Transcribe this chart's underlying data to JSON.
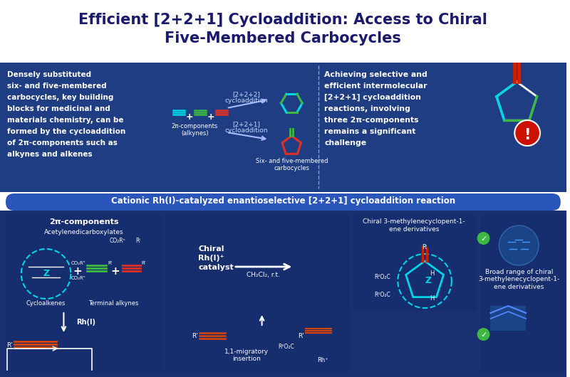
{
  "title_line1": "Efficient [2+2+1] Cycloaddition: Access to Chiral",
  "title_line2": "Five-Membered Carbocycles",
  "title_color": "#1a1a6e",
  "bg_top": "#ffffff",
  "bg_blue": "#1e3d82",
  "bg_dark_blue": "#162d6e",
  "bg_bottom": "#1a3070",
  "section2_title": "Cationic Rh(I)-catalyzed enantioselective [2+2+1] cycloaddition reaction",
  "left_text": [
    "Densely substituted",
    "six- and five-membered",
    "carbocycles, key building",
    "blocks for medicinal and",
    "materials chemistry, can be",
    "formed by the cycloaddition",
    "of 2π-components such as",
    "alkynes and alkenes"
  ],
  "right_text": [
    "Achieving selective and",
    "efficient intermolecular",
    "[2+2+1] cycloaddition",
    "reactions, involving",
    "three 2π-components",
    "remains a significant",
    "challenge"
  ],
  "label_alkynes": "2π-components\n(alkynes)",
  "label_products": "Six- and five-membered\ncarbocycles",
  "bottom_left_title": "2π-components",
  "bottom_left_sub1": "Acetylenedicarboxylates",
  "bottom_left_sub2": "Cycloalkenes",
  "bottom_left_sub3": "Terminal alkynes",
  "bottom_right_title1": "Chiral 3-methylenecyclopent-1-",
  "bottom_right_title2": "ene derivatives",
  "bottom_right_text": "Broad range of chiral\n3-methylenecyclopent-1-\nene derivatives",
  "catalyst_text1": "Chiral",
  "catalyst_text2": "Rh(I)⁺",
  "catalyst_text3": "catalyst",
  "solvent_text": "CH₂Cl₂, r.t.",
  "mechanism_title": "1,1-migratory\ninsertion",
  "rh_label": "Rh(I)",
  "color_cyan": "#00d4e8",
  "color_green": "#3db843",
  "color_red": "#e03020",
  "color_orange": "#e05000",
  "color_white": "#ffffff"
}
